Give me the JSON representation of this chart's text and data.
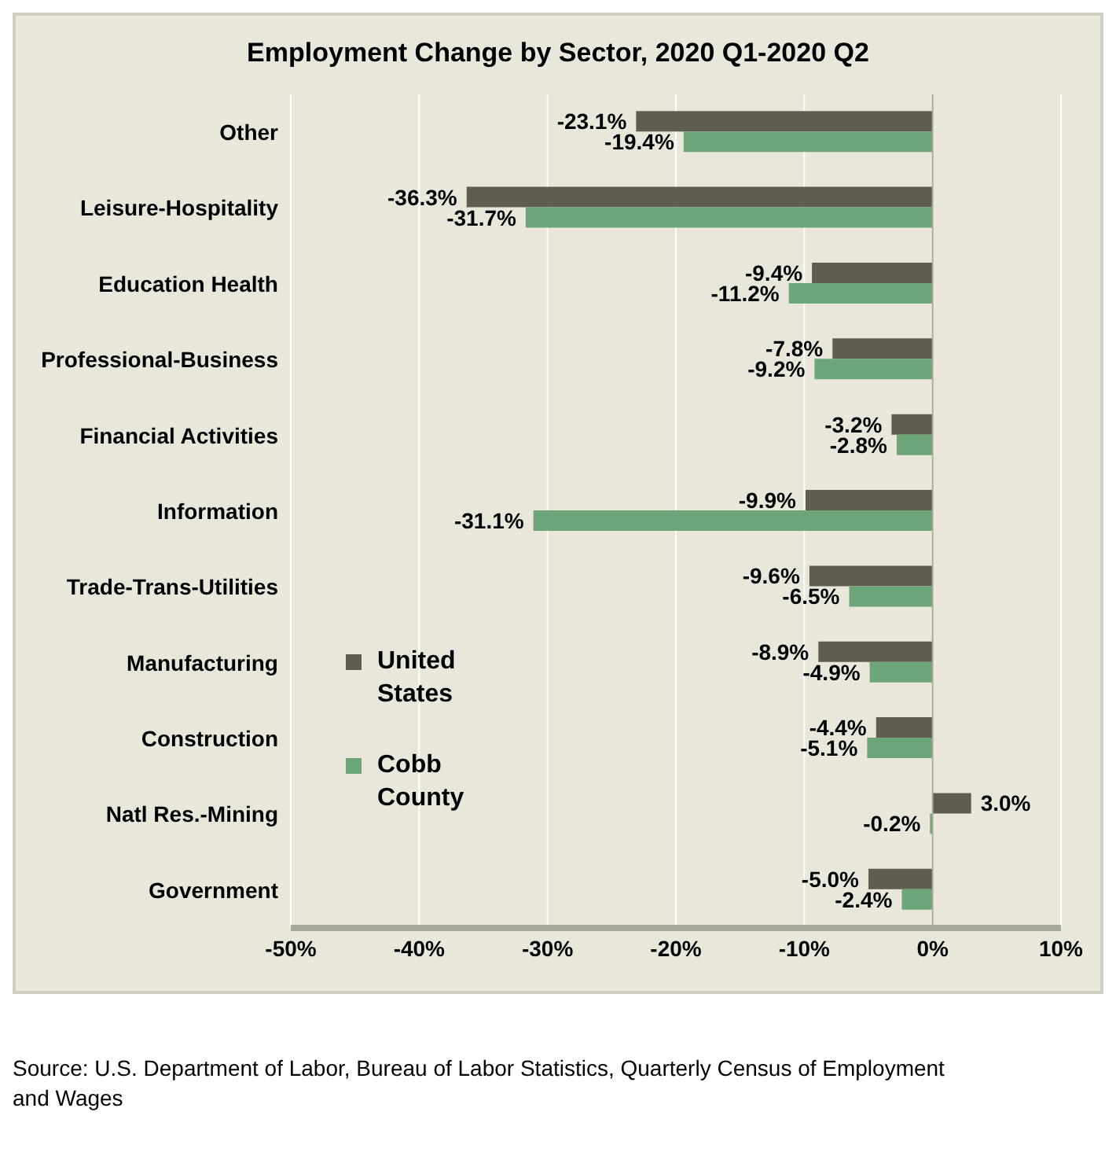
{
  "chart_data": {
    "type": "bar",
    "orientation": "horizontal",
    "title": "Employment Change by Sector, 2020 Q1-2020 Q2",
    "categories": [
      "Other",
      "Leisure-Hospitality",
      "Education Health",
      "Professional-Business",
      "Financial Activities",
      "Information",
      "Trade-Trans-Utilities",
      "Manufacturing",
      "Construction",
      "Natl Res.-Mining",
      "Government"
    ],
    "series": [
      {
        "name": "United States",
        "color": "#5e5d4f",
        "values": [
          -23.1,
          -36.3,
          -9.4,
          -7.8,
          -3.2,
          -9.9,
          -9.6,
          -8.9,
          -4.4,
          3.0,
          -5.0
        ],
        "value_labels": [
          "-23.1%",
          "-36.3%",
          "-9.4%",
          "-7.8%",
          "-3.2%",
          "-9.9%",
          "-9.6%",
          "-8.9%",
          "-4.4%",
          "3.0%",
          "-5.0%"
        ]
      },
      {
        "name": "Cobb County",
        "color": "#6ca576",
        "values": [
          -19.4,
          -31.7,
          -11.2,
          -9.2,
          -2.8,
          -31.1,
          -6.5,
          -4.9,
          -5.1,
          -0.2,
          -2.4
        ],
        "value_labels": [
          "-19.4%",
          "-31.7%",
          "-11.2%",
          "-9.2%",
          "-2.8%",
          "-31.1%",
          "-6.5%",
          "-4.9%",
          "-5.1%",
          "-0.2%",
          "-2.4%"
        ]
      }
    ],
    "xlim": [
      -50,
      10
    ],
    "xticks": [
      {
        "value": -50,
        "label": "-50%"
      },
      {
        "value": -40,
        "label": "-40%"
      },
      {
        "value": -30,
        "label": "-30%"
      },
      {
        "value": -20,
        "label": "-20%"
      },
      {
        "value": -10,
        "label": "-10%"
      },
      {
        "value": 0,
        "label": "0%"
      },
      {
        "value": 10,
        "label": "10%"
      }
    ],
    "grid": "x",
    "legend": "left",
    "annotations": [
      "Source: U.S. Department of Labor, Bureau of Labor Statistics, Quarterly Census of Employment and Wages"
    ]
  }
}
